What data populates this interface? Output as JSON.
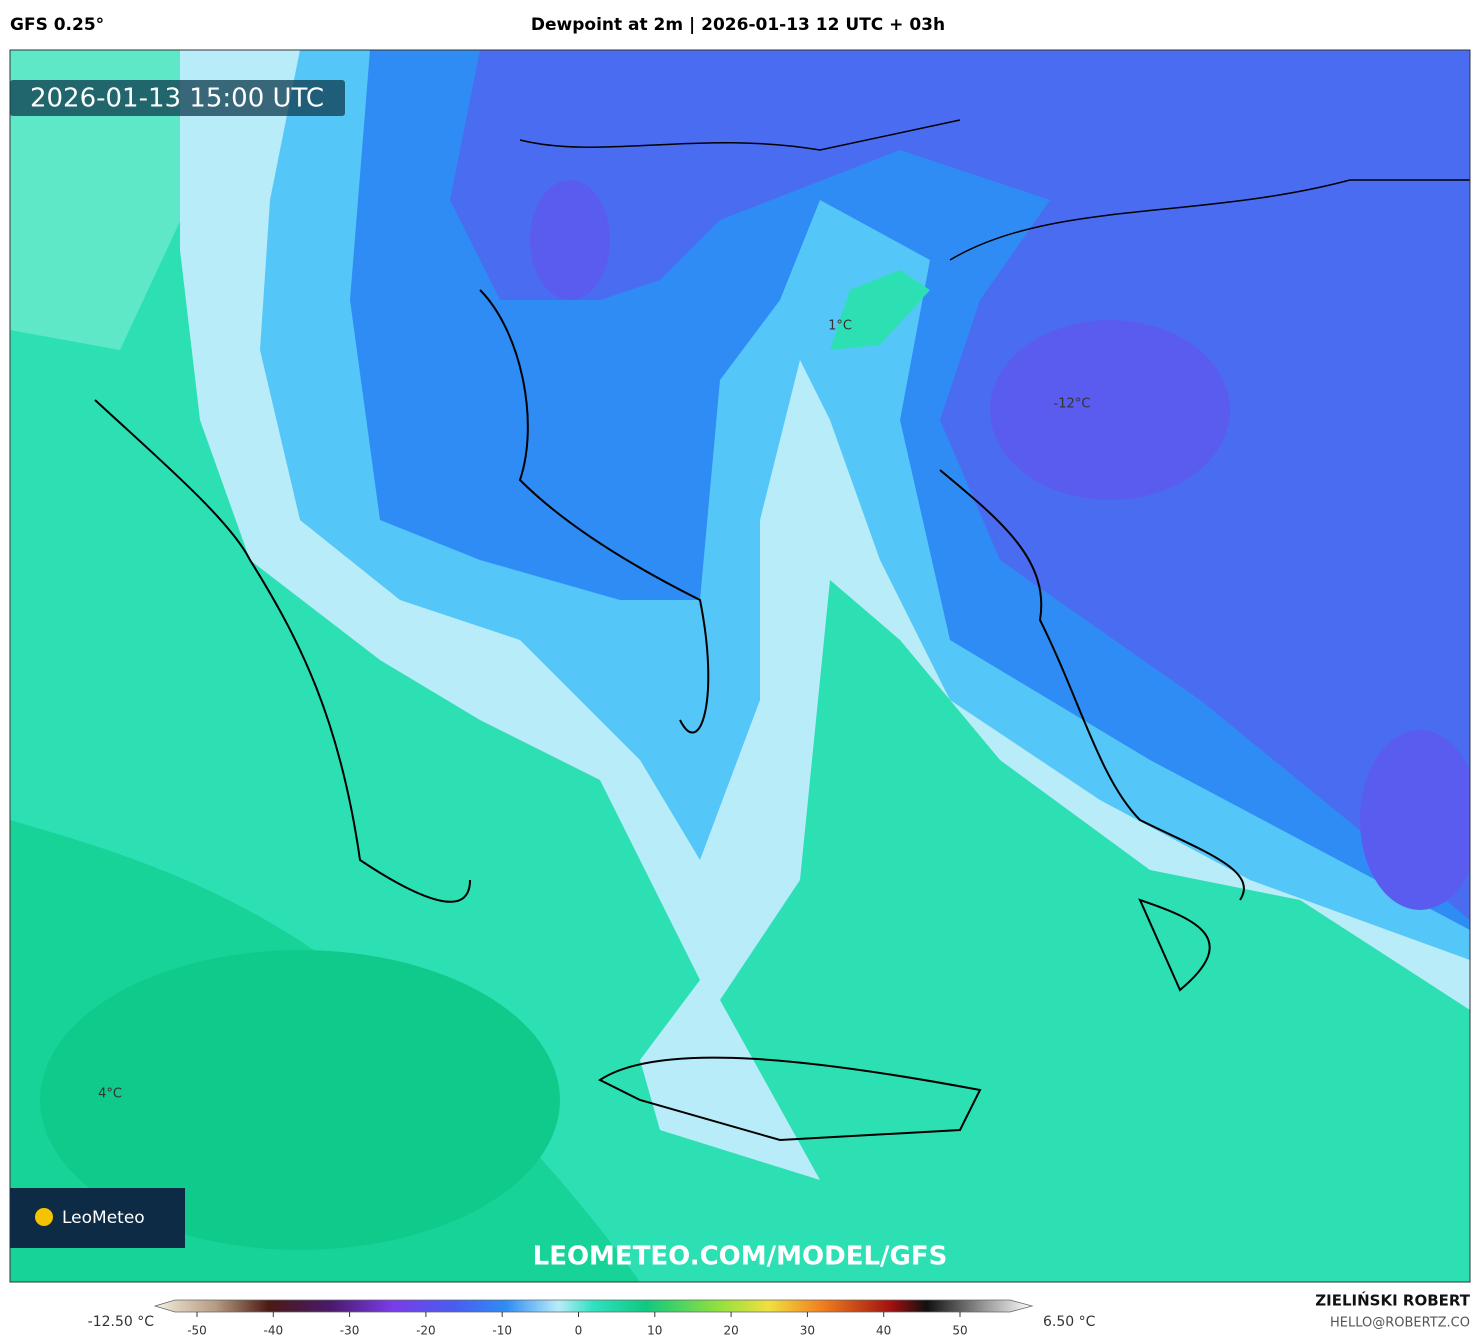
{
  "header": {
    "left": "GFS 0.25°",
    "title": "Dewpoint at 2m | 2026-01-13 12 UTC + 03h"
  },
  "map": {
    "timestamp": "2026-01-13 15:00 UTC",
    "labels": [
      "1°C",
      "-12°C",
      "4°C"
    ],
    "logo": "LeoMeteo",
    "watermark": "LEOMETEO.COM/MODEL/GFS"
  },
  "colorbar": {
    "min_label": "-12.50 °C",
    "max_label": "6.50 °C",
    "ticks": [
      -50,
      -40,
      -30,
      -20,
      -10,
      0,
      10,
      20,
      30,
      40,
      50
    ]
  },
  "footer": {
    "author": "ZIELIŃSKI ROBERT",
    "email": "HELLO@ROBERTZ.CO"
  }
}
